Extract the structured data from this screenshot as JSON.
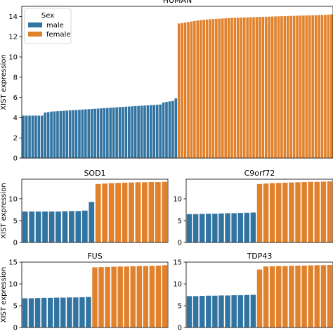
{
  "chart_data": [
    {
      "type": "bar",
      "title": "HUMAN",
      "ylabel": "XIST expression",
      "xlabel": "",
      "ylim": [
        0,
        15
      ],
      "yticks": [
        0,
        2,
        4,
        6,
        8,
        10,
        12,
        14
      ],
      "legend": {
        "title": "Sex",
        "placement": "top-left",
        "entries": [
          "male",
          "female"
        ]
      },
      "series": [
        {
          "name": "male",
          "color": "#3274a1",
          "values": [
            4.2,
            4.2,
            4.2,
            4.2,
            4.2,
            4.2,
            4.2,
            4.5,
            4.55,
            4.6,
            4.62,
            4.64,
            4.66,
            4.68,
            4.7,
            4.72,
            4.74,
            4.76,
            4.78,
            4.8,
            4.82,
            4.84,
            4.86,
            4.88,
            4.9,
            4.92,
            4.94,
            4.96,
            4.98,
            5.0,
            5.02,
            5.04,
            5.06,
            5.08,
            5.1,
            5.12,
            5.14,
            5.16,
            5.18,
            5.2,
            5.22,
            5.24,
            5.26,
            5.28,
            5.3,
            5.5,
            5.55,
            5.6,
            5.65,
            5.9
          ]
        },
        {
          "name": "female",
          "color": "#e1812c",
          "values": [
            13.3,
            13.35,
            13.4,
            13.45,
            13.5,
            13.55,
            13.6,
            13.64,
            13.67,
            13.7,
            13.72,
            13.74,
            13.76,
            13.78,
            13.8,
            13.82,
            13.84,
            13.86,
            13.87,
            13.88,
            13.89,
            13.9,
            13.91,
            13.92,
            13.93,
            13.94,
            13.95,
            13.96,
            13.97,
            13.98,
            13.99,
            14.0,
            14.01,
            14.02,
            14.03,
            14.04,
            14.05,
            14.06,
            14.07,
            14.08,
            14.09,
            14.1,
            14.11,
            14.12,
            14.13,
            14.14,
            14.15,
            14.16,
            14.18,
            14.2
          ]
        }
      ],
      "grid": false
    },
    {
      "type": "bar",
      "title": "SOD1",
      "ylabel": "XIST expression",
      "ylim": [
        0,
        14.5
      ],
      "yticks": [
        0,
        5,
        10
      ],
      "series": [
        {
          "name": "male",
          "color": "#3274a1",
          "values": [
            7.1,
            7.1,
            7.1,
            7.1,
            7.1,
            7.1,
            7.15,
            7.2,
            7.2,
            7.3,
            9.3
          ]
        },
        {
          "name": "female",
          "color": "#e1812c",
          "values": [
            13.4,
            13.5,
            13.6,
            13.65,
            13.7,
            13.75,
            13.8,
            13.8,
            13.85,
            13.85,
            13.9
          ]
        }
      ],
      "grid": false
    },
    {
      "type": "bar",
      "title": "C9orf72",
      "ylabel": "",
      "ylim": [
        0,
        14.5
      ],
      "yticks": [
        0,
        5,
        10
      ],
      "series": [
        {
          "name": "male",
          "color": "#3274a1",
          "values": [
            6.5,
            6.5,
            6.55,
            6.6,
            6.6,
            6.65,
            6.7,
            6.7,
            6.75,
            6.8,
            6.85
          ]
        },
        {
          "name": "female",
          "color": "#e1812c",
          "values": [
            13.4,
            13.5,
            13.6,
            13.65,
            13.7,
            13.75,
            13.8,
            13.85,
            13.9,
            13.9,
            13.95,
            14.0
          ]
        }
      ],
      "grid": false
    },
    {
      "type": "bar",
      "title": "FUS",
      "ylabel": "XIST expression",
      "ylim": [
        0,
        15
      ],
      "yticks": [
        0,
        5,
        10,
        15
      ],
      "series": [
        {
          "name": "male",
          "color": "#3274a1",
          "values": [
            6.7,
            6.7,
            6.75,
            6.8,
            6.8,
            6.85,
            6.85,
            6.9,
            6.9,
            6.95,
            7.0
          ]
        },
        {
          "name": "female",
          "color": "#e1812c",
          "values": [
            13.8,
            13.85,
            13.9,
            13.95,
            14.0,
            14.0,
            14.05,
            14.1,
            14.1,
            14.15,
            14.2,
            14.3
          ]
        }
      ],
      "grid": false
    },
    {
      "type": "bar",
      "title": "TDP43",
      "ylabel": "",
      "ylim": [
        0,
        15
      ],
      "yticks": [
        0,
        5,
        10,
        15
      ],
      "series": [
        {
          "name": "male",
          "color": "#3274a1",
          "values": [
            7.2,
            7.2,
            7.25,
            7.3,
            7.3,
            7.35,
            7.35,
            7.4,
            7.4,
            7.45,
            7.5
          ]
        },
        {
          "name": "female",
          "color": "#e1812c",
          "values": [
            13.3,
            14.0,
            14.05,
            14.1,
            14.1,
            14.15,
            14.2,
            14.2,
            14.25,
            14.3,
            14.3,
            14.35
          ]
        }
      ],
      "grid": false
    }
  ]
}
